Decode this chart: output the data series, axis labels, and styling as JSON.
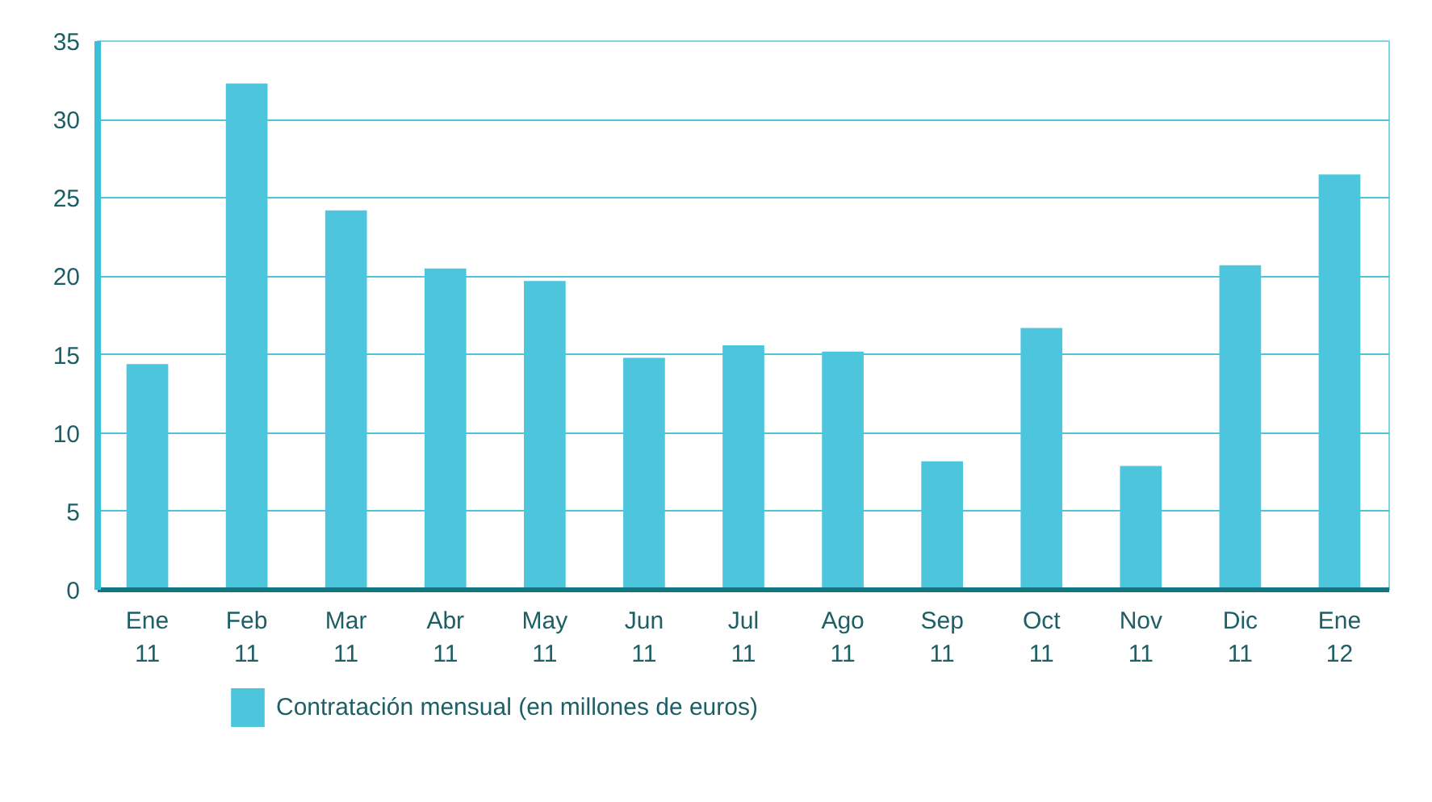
{
  "chart_data": {
    "type": "bar",
    "categories": [
      "Ene\n11",
      "Feb\n11",
      "Mar\n11",
      "Abr\n11",
      "May\n11",
      "Jun\n11",
      "Jul\n11",
      "Ago\n11",
      "Sep\n11",
      "Oct\n11",
      "Nov\n11",
      "Dic\n11",
      "Ene\n12"
    ],
    "series": [
      {
        "name": "Contratación mensual (en millones de euros)",
        "color": "#4dc6dd",
        "values": [
          14.4,
          32.3,
          24.2,
          20.5,
          19.7,
          14.8,
          15.6,
          15.2,
          8.2,
          16.7,
          7.9,
          20.7,
          26.5
        ]
      }
    ],
    "ylim": [
      0,
      35
    ],
    "yticks": [
      0,
      5,
      10,
      15,
      20,
      25,
      30,
      35
    ],
    "grid": "y",
    "legend": "bottom"
  }
}
